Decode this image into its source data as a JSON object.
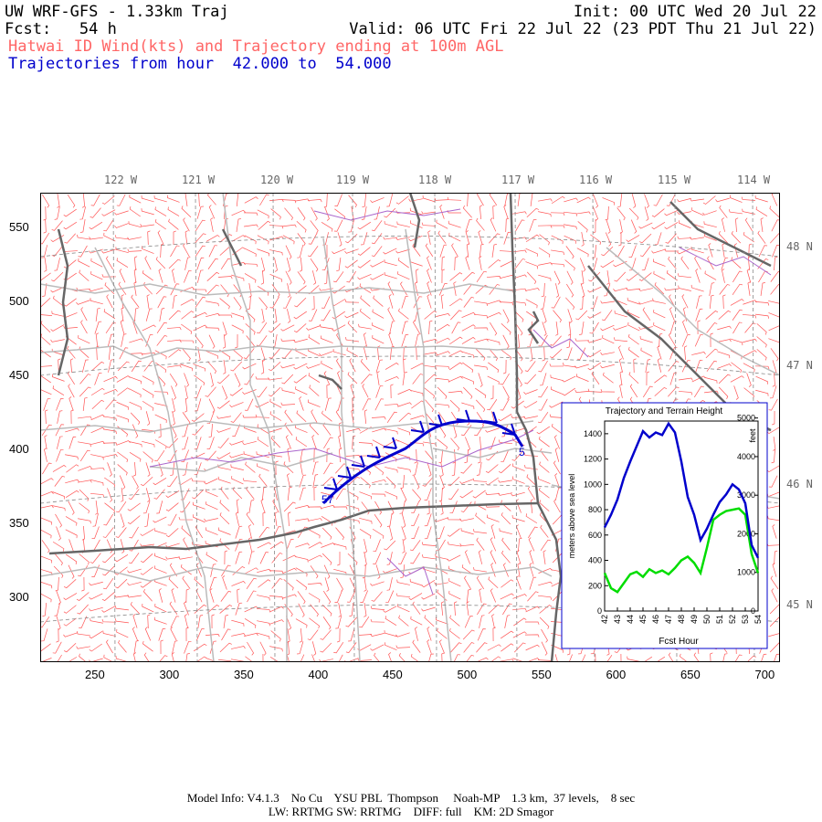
{
  "header": {
    "line1_left": "UW WRF-GFS - 1.33km Traj",
    "line1_right": "Init: 00 UTC Wed 20 Jul 22",
    "line2_left": "Fcst:   54 h",
    "line2_right": "Valid: 06 UTC Fri 22 Jul 22 (23 PDT Thu 21 Jul 22)",
    "line3": "Hatwai ID Wind(kts) and Trajectory ending at 100m AGL",
    "line4": "Trajectories from hour  42.000 to  54.000"
  },
  "map": {
    "lon_labels": [
      "122 W",
      "121 W",
      "120 W",
      "119 W",
      "118 W",
      "117 W",
      "116 W",
      "115 W",
      "114 W"
    ],
    "lat_labels": [
      "48 N",
      "47 N",
      "46 N",
      "45 N"
    ],
    "x_ticks": [
      "250",
      "300",
      "350",
      "400",
      "450",
      "500",
      "550",
      "600",
      "650",
      "700"
    ],
    "y_ticks": [
      "550",
      "500",
      "450",
      "400",
      "350",
      "300"
    ],
    "trajectory_start_label": "57",
    "trajectory_end_label": "5",
    "colors": {
      "wind_barbs": "#ff5555",
      "state_borders": "#666666",
      "county_lines": "#bbbbbb",
      "rivers": "#aa66cc",
      "trajectory": "#0000cc",
      "grid": "#888888"
    }
  },
  "inset": {
    "title": "Trajectory and Terrain Height",
    "ylabel_left": "meters above sea level",
    "ylabel_right": "feet",
    "xlabel": "Fcst Hour",
    "x_ticks": [
      "42",
      "43",
      "44",
      "45",
      "46",
      "47",
      "48",
      "49",
      "50",
      "51",
      "52",
      "53",
      "54"
    ],
    "y_ticks_left": [
      "0",
      "200",
      "400",
      "600",
      "800",
      "1000",
      "1200",
      "1400"
    ],
    "y_ticks_right": [
      "0",
      "1000",
      "2000",
      "3000",
      "4000",
      "5000"
    ]
  },
  "chart_data": {
    "type": "line",
    "x": [
      42,
      42.5,
      43,
      43.5,
      44,
      44.5,
      45,
      45.5,
      46,
      46.5,
      47,
      47.5,
      48,
      48.5,
      49,
      49.5,
      50,
      50.5,
      51,
      51.5,
      52,
      52.5,
      53,
      53.5,
      54
    ],
    "series": [
      {
        "color": "#0000cc",
        "values": [
          660,
          760,
          880,
          1050,
          1180,
          1300,
          1420,
          1370,
          1410,
          1390,
          1480,
          1410,
          1180,
          900,
          760,
          560,
          650,
          760,
          860,
          920,
          1000,
          960,
          850,
          520,
          420
        ]
      },
      {
        "color": "#00dd00",
        "values": [
          300,
          180,
          150,
          220,
          290,
          310,
          270,
          330,
          300,
          320,
          290,
          340,
          400,
          430,
          380,
          300,
          500,
          720,
          760,
          790,
          800,
          810,
          760,
          450,
          300
        ]
      }
    ],
    "ylim": [
      0,
      1500
    ],
    "xlim": [
      42,
      54
    ]
  },
  "footer": {
    "line1": "Model Info: V4.1.3    No Cu    YSU PBL  Thompson     Noah-MP    1.3 km,  37 levels,    8 sec",
    "line2": "LW: RRTMG SW: RRTMG    DIFF: full    KM: 2D Smagor"
  }
}
